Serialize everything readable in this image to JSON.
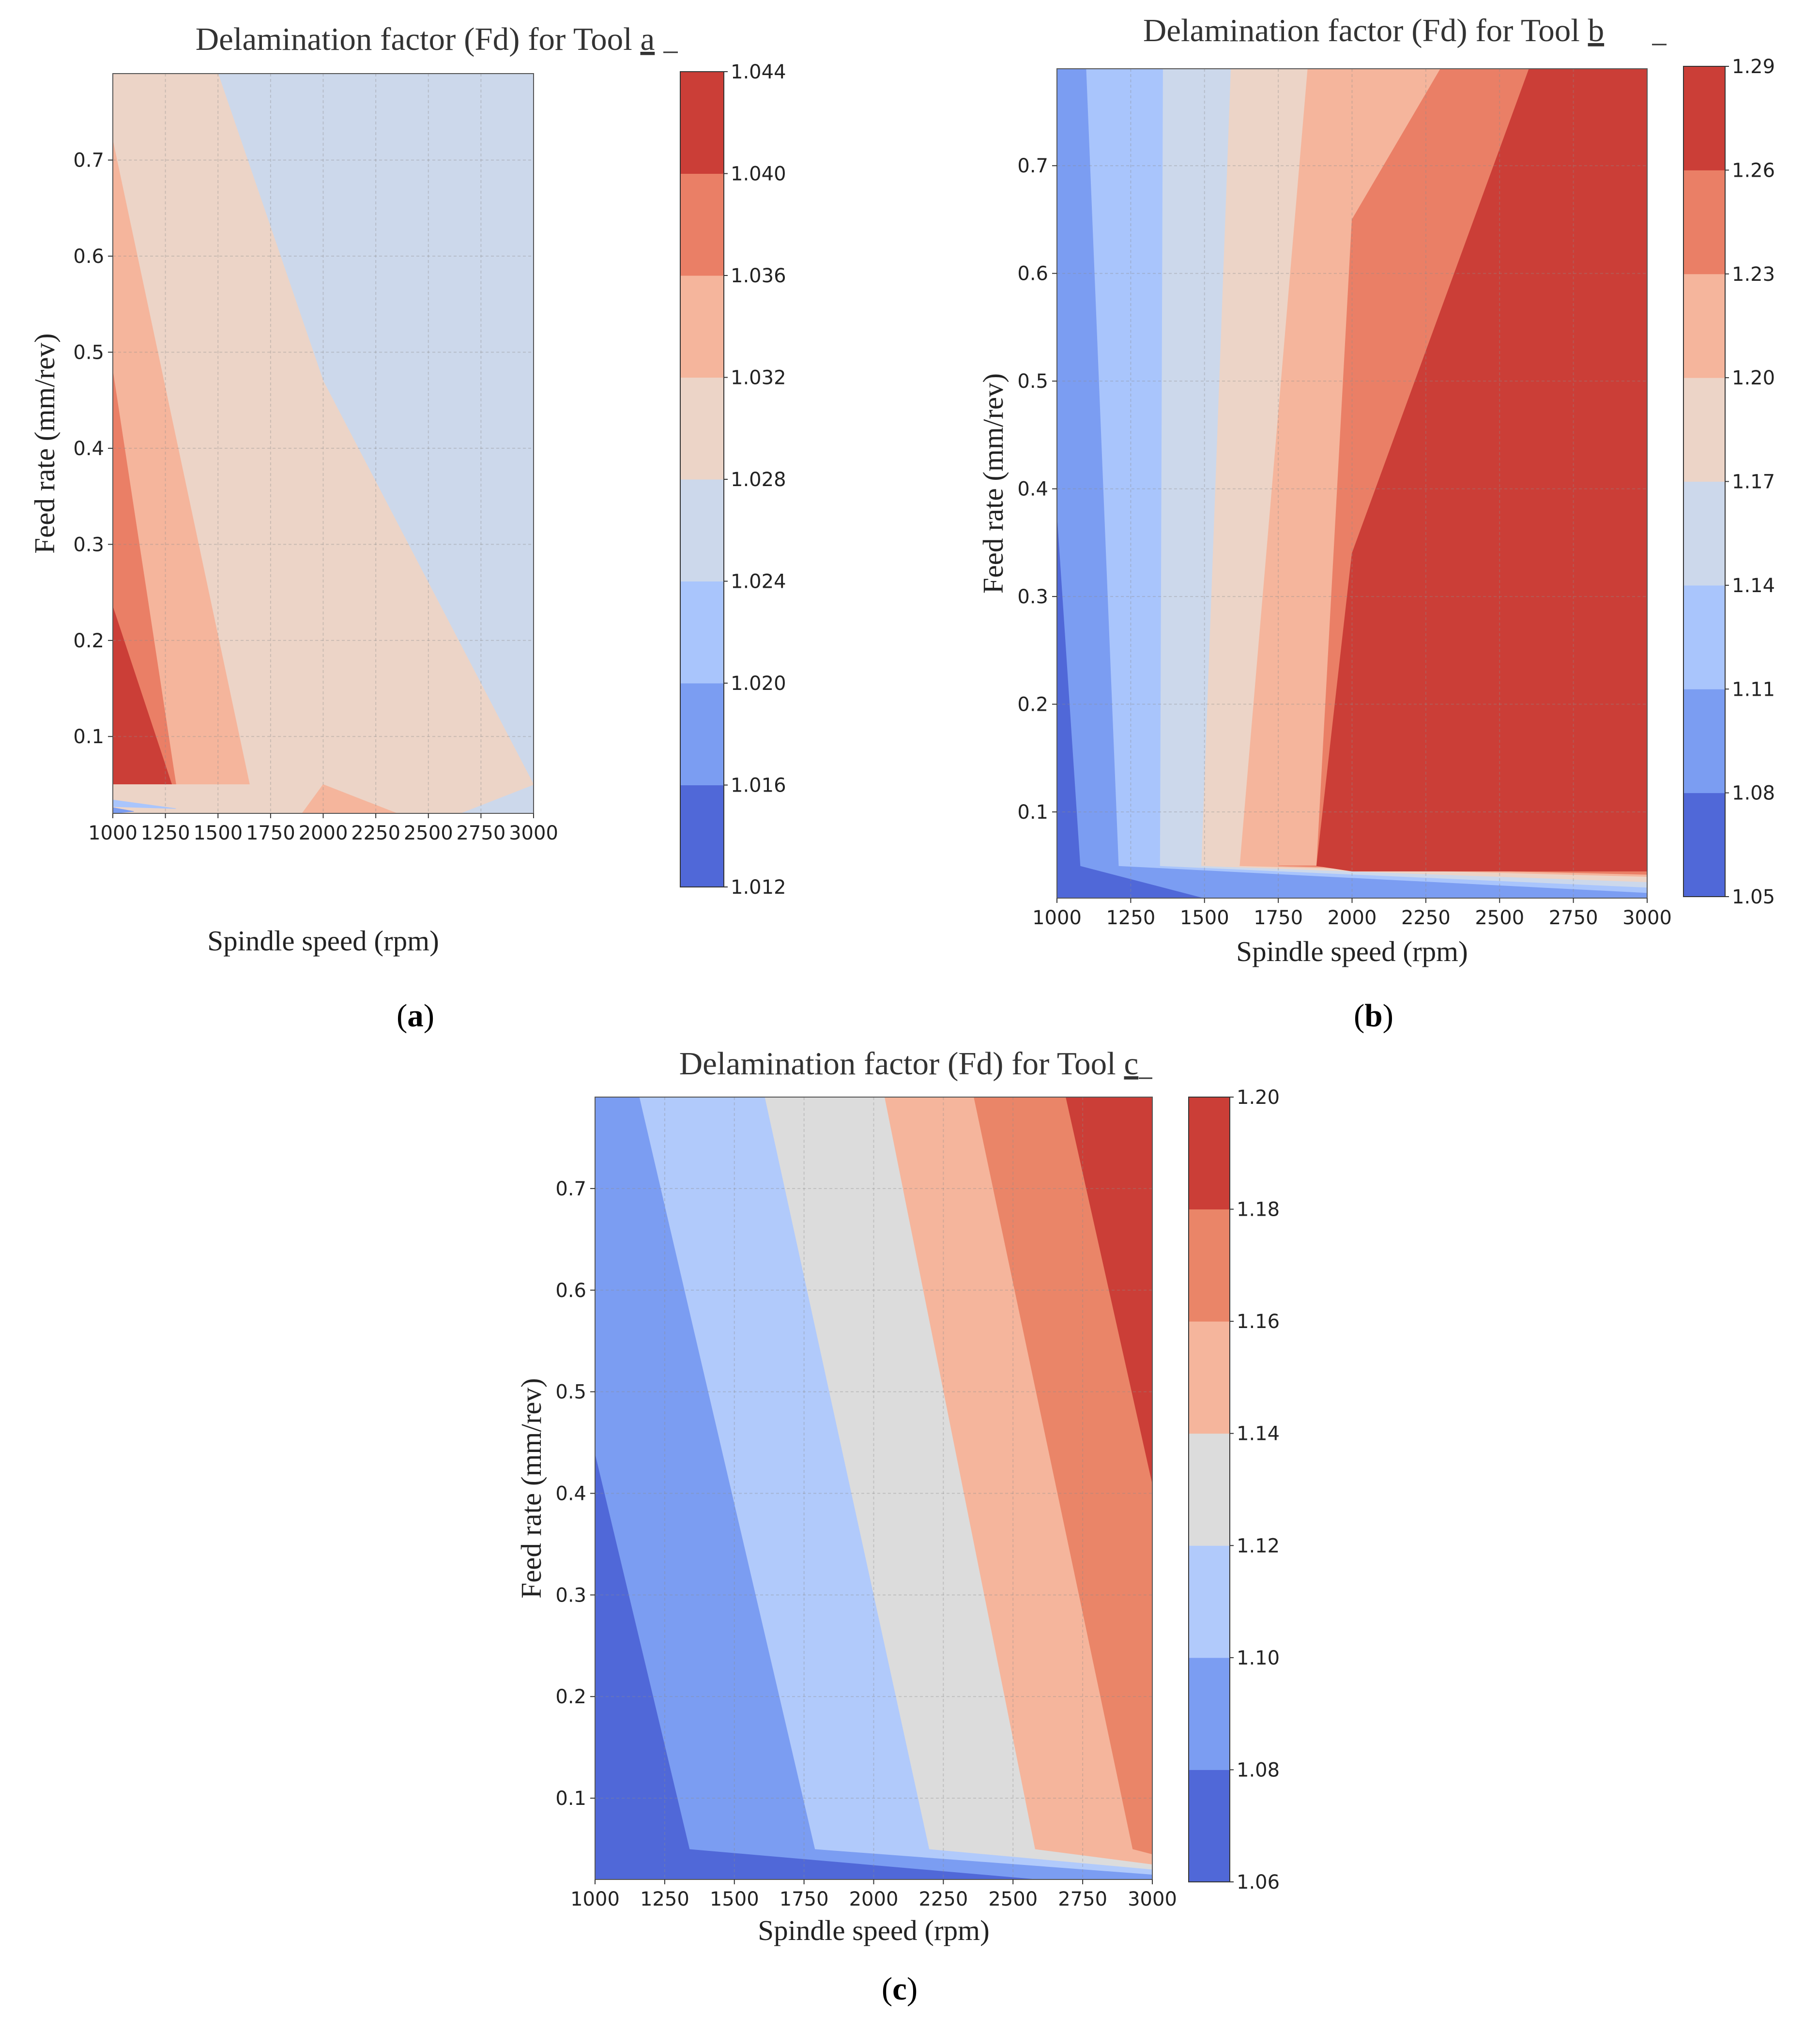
{
  "chart_data": [
    {
      "type": "contourf",
      "panel": "a",
      "title_prefix": "Delamination factor (Fd) for Tool ",
      "title_tool": "a",
      "xlabel": "Spindle speed (rpm)",
      "ylabel": "Feed rate (mm/rev)",
      "xlim": [
        1000,
        3000
      ],
      "ylim": [
        0.02,
        0.79
      ],
      "x_ticks": [
        1000,
        1250,
        1500,
        1750,
        2000,
        2250,
        2500,
        2750,
        3000
      ],
      "y_ticks": [
        0.1,
        0.2,
        0.3,
        0.4,
        0.5,
        0.6,
        0.7
      ],
      "levels": [
        1.012,
        1.016,
        1.02,
        1.024,
        1.028,
        1.032,
        1.036,
        1.04,
        1.044
      ],
      "level_labels": [
        "1.012",
        "1.016",
        "1.020",
        "1.024",
        "1.028",
        "1.032",
        "1.036",
        "1.040",
        "1.044"
      ],
      "colors": [
        "#5068d8",
        "#7b9df2",
        "#a9c5fc",
        "#ccd8eb",
        "#ecd4c7",
        "#f5b59c",
        "#ea7f66",
        "#cb3e37"
      ],
      "regions": [
        {
          "level": 3,
          "points": [
            [
              1000,
              0.79
            ],
            [
              3000,
              0.79
            ],
            [
              3000,
              0.02
            ],
            [
              1000,
              0.02
            ]
          ]
        },
        {
          "level": 4,
          "points": [
            [
              1000,
              0.79
            ],
            [
              1500,
              0.79
            ],
            [
              2000,
              0.47
            ],
            [
              3000,
              0.05
            ],
            [
              2650,
              0.02
            ],
            [
              1000,
              0.02
            ]
          ]
        },
        {
          "level": 5,
          "points": [
            [
              1000,
              0.72
            ],
            [
              1650,
              0.05
            ],
            [
              1000,
              0.05
            ]
          ]
        },
        {
          "level": 5,
          "points": [
            [
              1900,
              0.02
            ],
            [
              2000,
              0.05
            ],
            [
              2350,
              0.02
            ]
          ]
        },
        {
          "level": 6,
          "points": [
            [
              1000,
              0.48
            ],
            [
              1300,
              0.05
            ],
            [
              1000,
              0.05
            ]
          ]
        },
        {
          "level": 7,
          "points": [
            [
              1000,
              0.235
            ],
            [
              1280,
              0.05
            ],
            [
              1000,
              0.05
            ]
          ]
        },
        {
          "level": 4,
          "points": [
            [
              1000,
              0.05
            ],
            [
              1300,
              0.05
            ],
            [
              1650,
              0.05
            ],
            [
              1950,
              0.05
            ],
            [
              1000,
              0.037
            ]
          ]
        },
        {
          "level": 2,
          "points": [
            [
              1000,
              0.034
            ],
            [
              1300,
              0.025
            ],
            [
              1000,
              0.027
            ]
          ]
        },
        {
          "level": 1,
          "points": [
            [
              1000,
              0.026
            ],
            [
              1100,
              0.022
            ],
            [
              1000,
              0.02
            ]
          ]
        }
      ]
    },
    {
      "type": "contourf",
      "panel": "b",
      "title_prefix": "Delamination factor (Fd) for Tool ",
      "title_tool": "b",
      "xlabel": "Spindle speed (rpm)",
      "ylabel": "Feed rate (mm/rev)",
      "xlim": [
        1000,
        3000
      ],
      "ylim": [
        0.02,
        0.79
      ],
      "x_ticks": [
        1000,
        1250,
        1500,
        1750,
        2000,
        2250,
        2500,
        2750,
        3000
      ],
      "y_ticks": [
        0.1,
        0.2,
        0.3,
        0.4,
        0.5,
        0.6,
        0.7
      ],
      "levels": [
        1.05,
        1.08,
        1.11,
        1.14,
        1.17,
        1.2,
        1.23,
        1.26,
        1.29
      ],
      "level_labels": [
        "1.05",
        "1.08",
        "1.11",
        "1.14",
        "1.17",
        "1.20",
        "1.23",
        "1.26",
        "1.29"
      ],
      "colors": [
        "#5068d8",
        "#7b9df2",
        "#a9c5fc",
        "#ccd8eb",
        "#ecd4c7",
        "#f5b59c",
        "#ea7f66",
        "#cb3e37"
      ],
      "regions": [
        {
          "level": 0,
          "points": [
            [
              1000,
              0.79
            ],
            [
              3000,
              0.79
            ],
            [
              3000,
              0.02
            ],
            [
              1000,
              0.02
            ]
          ]
        },
        {
          "level": 1,
          "points": [
            [
              1000,
              0.79
            ],
            [
              3000,
              0.79
            ],
            [
              3000,
              0.02
            ],
            [
              1500,
              0.02
            ],
            [
              1080,
              0.05
            ],
            [
              1000,
              0.38
            ]
          ]
        },
        {
          "level": 2,
          "points": [
            [
              1100,
              0.79
            ],
            [
              3000,
              0.79
            ],
            [
              3000,
              0.025
            ],
            [
              1210,
              0.05
            ]
          ]
        },
        {
          "level": 3,
          "points": [
            [
              1360,
              0.79
            ],
            [
              3000,
              0.79
            ],
            [
              3000,
              0.03
            ],
            [
              1350,
              0.05
            ]
          ]
        },
        {
          "level": 4,
          "points": [
            [
              1590,
              0.79
            ],
            [
              3000,
              0.79
            ],
            [
              3000,
              0.035
            ],
            [
              1490,
              0.05
            ]
          ]
        },
        {
          "level": 5,
          "points": [
            [
              1850,
              0.79
            ],
            [
              3000,
              0.79
            ],
            [
              3000,
              0.04
            ],
            [
              1620,
              0.05
            ]
          ]
        },
        {
          "level": 6,
          "points": [
            [
              2300,
              0.79
            ],
            [
              3000,
              0.79
            ],
            [
              3000,
              0.042
            ],
            [
              1750,
              0.05
            ],
            [
              1880,
              0.05
            ],
            [
              2000,
              0.65
            ]
          ]
        },
        {
          "level": 7,
          "points": [
            [
              2600,
              0.79
            ],
            [
              3000,
              0.79
            ],
            [
              3000,
              0.045
            ],
            [
              2000,
              0.045
            ],
            [
              1880,
              0.05
            ],
            [
              2000,
              0.34
            ]
          ]
        }
      ]
    },
    {
      "type": "contourf",
      "panel": "c",
      "title_prefix": "Delamination factor (Fd) for Tool ",
      "title_tool": "c",
      "xlabel": "Spindle speed (rpm)",
      "ylabel": "Feed rate (mm/rev)",
      "xlim": [
        1000,
        3000
      ],
      "ylim": [
        0.02,
        0.79
      ],
      "x_ticks": [
        1000,
        1250,
        1500,
        1750,
        2000,
        2250,
        2500,
        2750,
        3000
      ],
      "y_ticks": [
        0.1,
        0.2,
        0.3,
        0.4,
        0.5,
        0.6,
        0.7
      ],
      "levels": [
        1.06,
        1.08,
        1.1,
        1.12,
        1.14,
        1.16,
        1.18,
        1.2
      ],
      "level_labels": [
        "1.06",
        "1.08",
        "1.10",
        "1.12",
        "1.14",
        "1.16",
        "1.18",
        "1.20"
      ],
      "colors": [
        "#5068d8",
        "#7b9df2",
        "#b1cafb",
        "#dcdcdc",
        "#f5b59c",
        "#ea8568",
        "#cb3e37"
      ],
      "regions": [
        {
          "level": 0,
          "points": [
            [
              1000,
              0.79
            ],
            [
              3000,
              0.79
            ],
            [
              3000,
              0.02
            ],
            [
              1000,
              0.02
            ]
          ]
        },
        {
          "level": 1,
          "points": [
            [
              1000,
              0.79
            ],
            [
              3000,
              0.79
            ],
            [
              3000,
              0.02
            ],
            [
              2600,
              0.02
            ],
            [
              1340,
              0.05
            ],
            [
              1000,
              0.44
            ]
          ]
        },
        {
          "level": 2,
          "points": [
            [
              1160,
              0.79
            ],
            [
              3000,
              0.79
            ],
            [
              3000,
              0.025
            ],
            [
              1790,
              0.05
            ]
          ]
        },
        {
          "level": 3,
          "points": [
            [
              1610,
              0.79
            ],
            [
              3000,
              0.79
            ],
            [
              3000,
              0.03
            ],
            [
              2200,
              0.05
            ]
          ]
        },
        {
          "level": 4,
          "points": [
            [
              2040,
              0.79
            ],
            [
              3000,
              0.79
            ],
            [
              3000,
              0.035
            ],
            [
              2580,
              0.05
            ]
          ]
        },
        {
          "level": 5,
          "points": [
            [
              2360,
              0.79
            ],
            [
              3000,
              0.79
            ],
            [
              3000,
              0.045
            ],
            [
              2930,
              0.05
            ]
          ]
        },
        {
          "level": 6,
          "points": [
            [
              2690,
              0.79
            ],
            [
              3000,
              0.79
            ],
            [
              3000,
              0.41
            ]
          ]
        }
      ]
    }
  ],
  "panel_labels": [
    "a",
    "b",
    "c"
  ]
}
